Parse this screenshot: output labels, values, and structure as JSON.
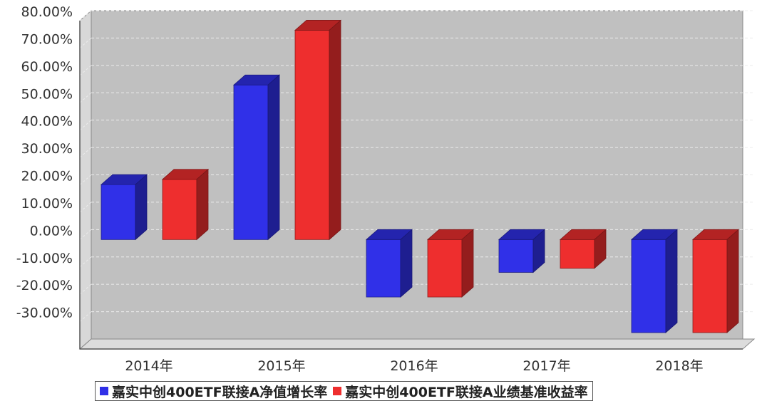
{
  "chart_data": {
    "type": "bar",
    "categories": [
      "2014年",
      "2015年",
      "2016年",
      "2017年",
      "2018年"
    ],
    "series": [
      {
        "name": "嘉实中创400ETF联接A净值增长率",
        "values": [
          20.1,
          56.5,
          -21.0,
          -12.0,
          -34.0
        ],
        "color": "#3030e8"
      },
      {
        "name": "嘉实中创400ETF联接A业绩基准收益率",
        "values": [
          22.0,
          76.5,
          -21.0,
          -10.5,
          -34.0
        ],
        "color": "#ee2e2e"
      }
    ],
    "y_ticks": [
      "80.00%",
      "70.00%",
      "60.00%",
      "50.00%",
      "40.00%",
      "30.00%",
      "20.00%",
      "10.00%",
      "0.00%",
      "-10.00%",
      "-20.00%",
      "-30.00%"
    ],
    "ylim": [
      -40,
      80
    ],
    "grid": true,
    "legend_position": "bottom",
    "plot_background": "#c0c0c0"
  }
}
